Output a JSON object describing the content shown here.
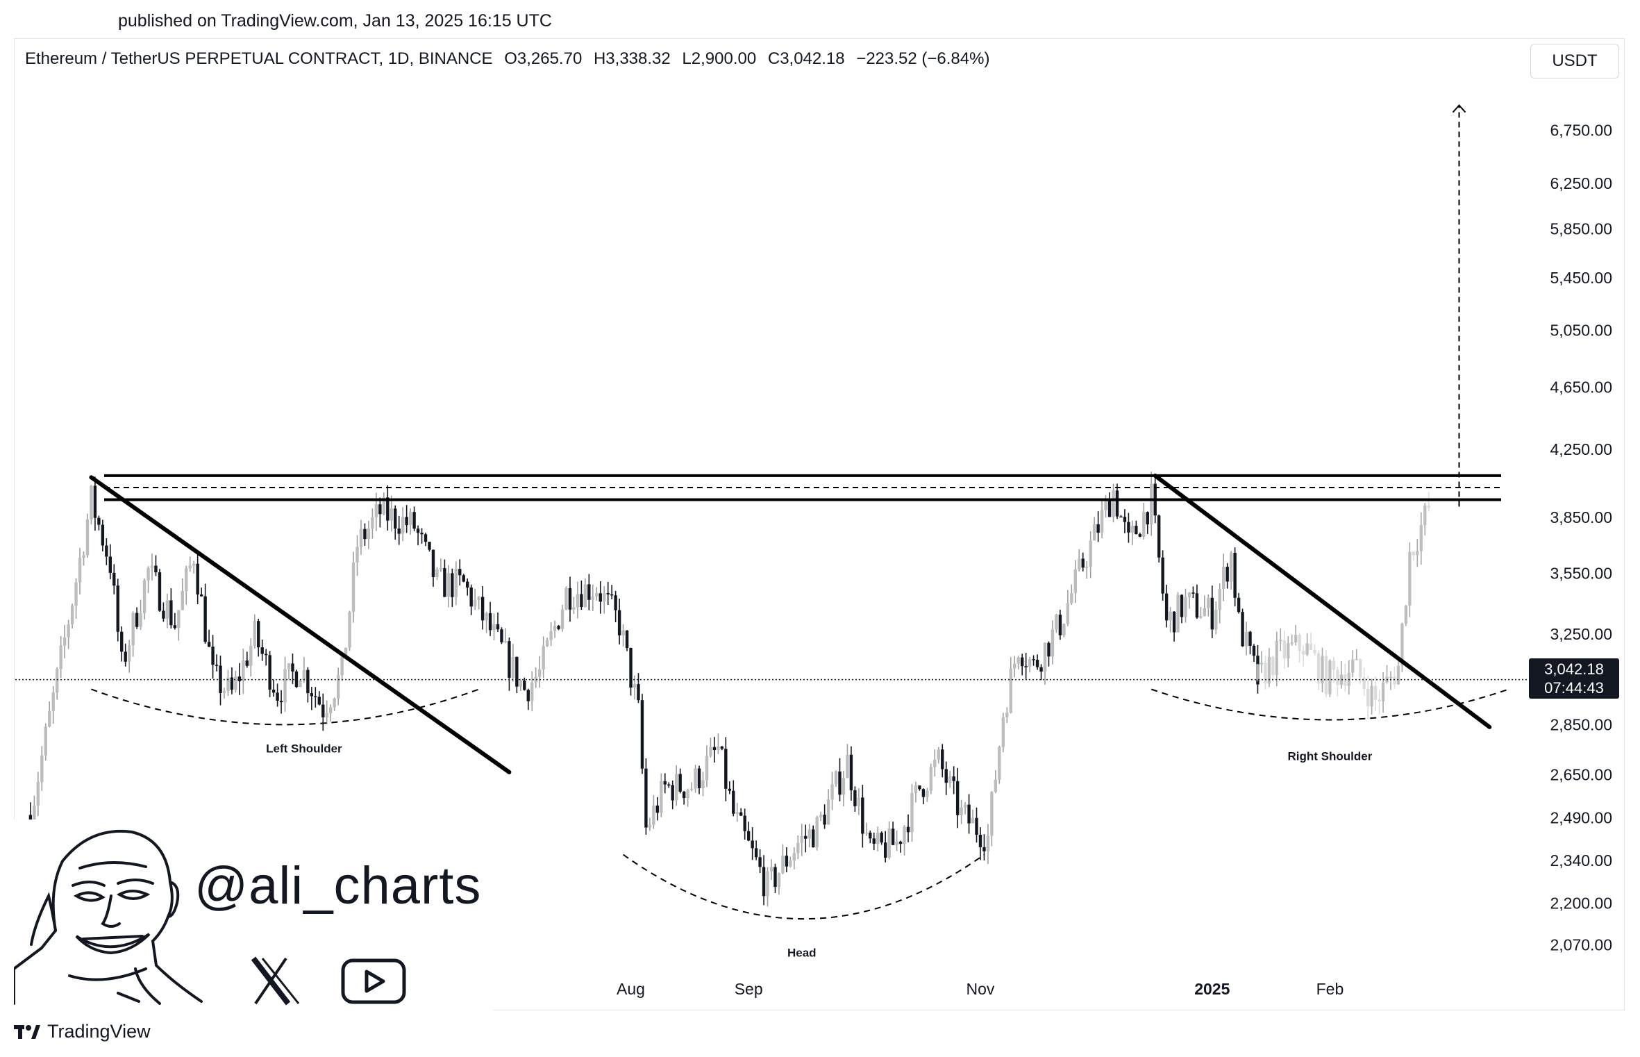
{
  "header": {
    "published": "published on TradingView.com, Jan 13, 2025 16:15 UTC"
  },
  "symbol": {
    "name": "Ethereum / TetherUS PERPETUAL CONTRACT, 1D, BINANCE",
    "open": "O3,265.70",
    "high": "H3,338.32",
    "low": "L2,900.00",
    "close": "C3,042.18",
    "change": "−223.52 (−6.84%)"
  },
  "currency": "USDT",
  "price_tag": {
    "price": "3,042.18",
    "countdown": "07:44:43"
  },
  "branding": {
    "handle": "@ali_charts",
    "logo_text": "TradingView"
  },
  "icons": [
    "x-logo-icon",
    "youtube-play-icon",
    "tradingview-logo-icon",
    "avatar-illustration"
  ],
  "colors": {
    "candle": "#131722",
    "projection": "#cccccc",
    "grid": "#ffffff",
    "text": "#131722"
  },
  "chart_data": {
    "type": "candlestick",
    "scale": "log",
    "ylim": [
      1950,
      7300
    ],
    "grid": false,
    "y_ticks": [
      2070,
      2200,
      2340,
      2490,
      2650,
      2850,
      3250,
      3550,
      3850,
      4250,
      4650,
      5050,
      5450,
      5850,
      6250,
      6750
    ],
    "y_tick_labels": [
      "2,070.00",
      "2,200.00",
      "2,340.00",
      "2,490.00",
      "2,650.00",
      "2,850.00",
      "3,250.00",
      "3,550.00",
      "3,850.00",
      "4,250.00",
      "4,650.00",
      "5,050.00",
      "5,450.00",
      "5,850.00",
      "6,250.00",
      "6,750.00"
    ],
    "x_ticks": [
      {
        "date": "2024-08-01",
        "label": "Aug"
      },
      {
        "date": "2024-09-01",
        "label": "Sep"
      },
      {
        "date": "2024-11-01",
        "label": "Nov"
      },
      {
        "date": "2025-01-01",
        "label": "2025"
      },
      {
        "date": "2025-02-01",
        "label": "Feb"
      }
    ],
    "xlim": [
      "2024-02-21",
      "2025-03-25"
    ],
    "current_price": 3042.18,
    "resistance_zone": [
      3950,
      4090
    ],
    "resistance_mid": 4020,
    "target_price": 7000,
    "closes": [
      {
        "date": "2024-02-25",
        "close": 2500
      },
      {
        "date": "2024-03-04",
        "close": 3130
      },
      {
        "date": "2024-03-12",
        "close": 3950
      },
      {
        "date": "2024-03-17",
        "close": 3600
      },
      {
        "date": "2024-03-20",
        "close": 3100
      },
      {
        "date": "2024-03-27",
        "close": 3560
      },
      {
        "date": "2024-04-03",
        "close": 3300
      },
      {
        "date": "2024-04-08",
        "close": 3650
      },
      {
        "date": "2024-04-13",
        "close": 3050
      },
      {
        "date": "2024-04-18",
        "close": 2980
      },
      {
        "date": "2024-04-24",
        "close": 3240
      },
      {
        "date": "2024-04-30",
        "close": 2990
      },
      {
        "date": "2024-05-06",
        "close": 3100
      },
      {
        "date": "2024-05-12",
        "close": 2920
      },
      {
        "date": "2024-05-17",
        "close": 3070
      },
      {
        "date": "2024-05-21",
        "close": 3700
      },
      {
        "date": "2024-05-27",
        "close": 3880
      },
      {
        "date": "2024-06-05",
        "close": 3800
      },
      {
        "date": "2024-06-11",
        "close": 3500
      },
      {
        "date": "2024-06-18",
        "close": 3490
      },
      {
        "date": "2024-06-24",
        "close": 3300
      },
      {
        "date": "2024-07-04",
        "close": 3000
      },
      {
        "date": "2024-07-08",
        "close": 3070
      },
      {
        "date": "2024-07-15",
        "close": 3450
      },
      {
        "date": "2024-07-23",
        "close": 3480
      },
      {
        "date": "2024-07-29",
        "close": 3300
      },
      {
        "date": "2024-08-03",
        "close": 2900
      },
      {
        "date": "2024-08-05",
        "close": 2450
      },
      {
        "date": "2024-08-10",
        "close": 2600
      },
      {
        "date": "2024-08-17",
        "close": 2610
      },
      {
        "date": "2024-08-24",
        "close": 2750
      },
      {
        "date": "2024-08-28",
        "close": 2500
      },
      {
        "date": "2024-09-06",
        "close": 2250
      },
      {
        "date": "2024-09-14",
        "close": 2400
      },
      {
        "date": "2024-09-19",
        "close": 2450
      },
      {
        "date": "2024-09-27",
        "close": 2700
      },
      {
        "date": "2024-10-03",
        "close": 2370
      },
      {
        "date": "2024-10-10",
        "close": 2400
      },
      {
        "date": "2024-10-16",
        "close": 2600
      },
      {
        "date": "2024-10-21",
        "close": 2700
      },
      {
        "date": "2024-10-27",
        "close": 2500
      },
      {
        "date": "2024-11-03",
        "close": 2420
      },
      {
        "date": "2024-11-07",
        "close": 2900
      },
      {
        "date": "2024-11-11",
        "close": 3200
      },
      {
        "date": "2024-11-15",
        "close": 3100
      },
      {
        "date": "2024-11-22",
        "close": 3300
      },
      {
        "date": "2024-11-28",
        "close": 3600
      },
      {
        "date": "2024-12-06",
        "close": 4000
      },
      {
        "date": "2024-12-10",
        "close": 3700
      },
      {
        "date": "2024-12-16",
        "close": 3950
      },
      {
        "date": "2024-12-20",
        "close": 3300
      },
      {
        "date": "2024-12-25",
        "close": 3400
      },
      {
        "date": "2025-01-01",
        "close": 3350
      },
      {
        "date": "2025-01-06",
        "close": 3650
      },
      {
        "date": "2025-01-08",
        "close": 3300
      },
      {
        "date": "2025-01-13",
        "close": 3042
      }
    ],
    "projection": [
      {
        "date": "2025-01-13",
        "close": 3042
      },
      {
        "date": "2025-01-18",
        "close": 3150
      },
      {
        "date": "2025-01-25",
        "close": 3200
      },
      {
        "date": "2025-01-31",
        "close": 3050
      },
      {
        "date": "2025-02-07",
        "close": 3100
      },
      {
        "date": "2025-02-13",
        "close": 2950
      },
      {
        "date": "2025-02-19",
        "close": 3100
      },
      {
        "date": "2025-02-22",
        "close": 3650
      },
      {
        "date": "2025-02-27",
        "close": 3900
      }
    ],
    "patterns": [
      {
        "label": "Left Shoulder",
        "text_date": "2024-05-07",
        "bottom_price": 2850
      },
      {
        "label": "Head",
        "text_date": "2024-09-15",
        "bottom_price": 2150
      },
      {
        "label": "Right Shoulder",
        "text_date": "2025-02-01",
        "bottom_price": 2870
      }
    ],
    "trendlines": [
      {
        "from": {
          "date": "2024-03-12",
          "price": 4080
        },
        "to": {
          "date": "2024-06-30",
          "price": 2660
        }
      },
      {
        "from": {
          "date": "2024-12-17",
          "price": 4090
        },
        "to": {
          "date": "2025-03-15",
          "price": 2840
        }
      }
    ]
  }
}
